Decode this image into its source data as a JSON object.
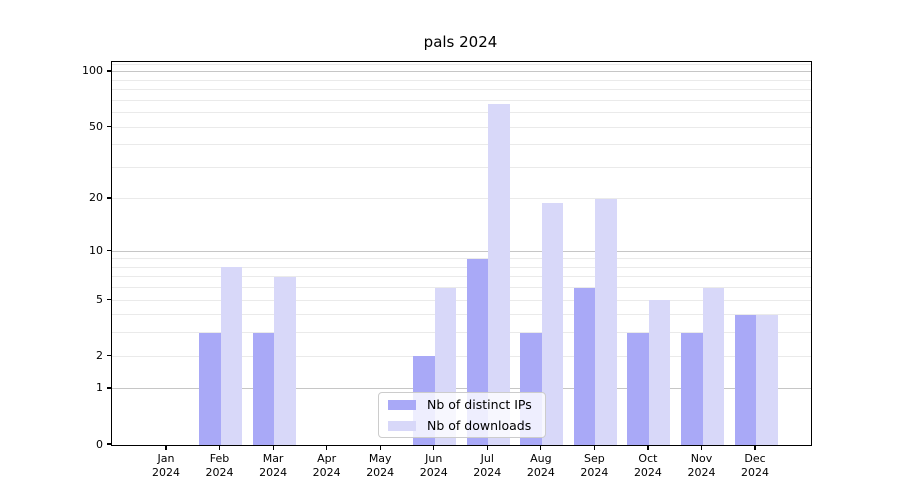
{
  "title": "pals 2024",
  "chart_data": {
    "type": "bar",
    "title": "pals 2024",
    "year": "2024",
    "months": [
      "Jan",
      "Feb",
      "Mar",
      "Apr",
      "May",
      "Jun",
      "Jul",
      "Aug",
      "Sep",
      "Oct",
      "Nov",
      "Dec"
    ],
    "series": [
      {
        "name": "Nb of distinct IPs",
        "color": "#a9a9f7",
        "values": [
          0,
          3,
          3,
          0,
          0,
          2,
          9,
          3,
          6,
          3,
          3,
          4
        ]
      },
      {
        "name": "Nb of downloads",
        "color": "#d8d8f9",
        "values": [
          0,
          8,
          7,
          0,
          0,
          6,
          67,
          19,
          20,
          5,
          6,
          4
        ]
      }
    ],
    "yscale": "log1p",
    "ylim": [
      0,
      113.3
    ],
    "y_tick_labels": [
      "0",
      "1",
      "2",
      "5",
      "10",
      "20",
      "50",
      "100"
    ],
    "y_tick_values": [
      0,
      1,
      2,
      5,
      10,
      20,
      50,
      100
    ],
    "y_major_gridlines": [
      1,
      10,
      100
    ],
    "y_minor_gridlines": [
      2,
      3,
      4,
      5,
      6,
      7,
      8,
      9,
      20,
      30,
      40,
      50,
      60,
      70,
      80,
      90,
      110
    ],
    "grid": true,
    "grid_major_color": "#c6c6c6",
    "grid_minor_color": "#eaeaea",
    "legend_position": "lower center"
  }
}
